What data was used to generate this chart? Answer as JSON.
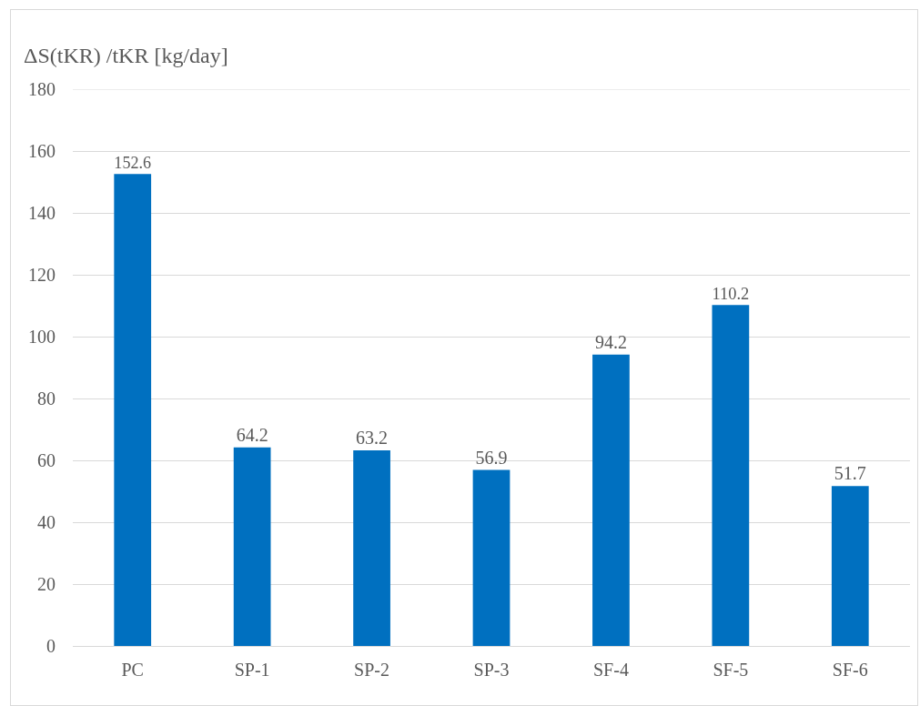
{
  "chart_data": {
    "type": "bar",
    "ylabel": "ΔS(tKR) /tKR [kg/day]",
    "categories": [
      "PC",
      "SP-1",
      "SP-2",
      "SP-3",
      "SF-4",
      "SF-5",
      "SF-6"
    ],
    "values": [
      152.6,
      64.2,
      63.2,
      56.9,
      94.2,
      110.2,
      51.7
    ],
    "color": "#0070c0",
    "ylim": [
      0,
      180
    ],
    "yticks": [
      0,
      20,
      40,
      60,
      80,
      100,
      120,
      140,
      160,
      180
    ],
    "grid": "y",
    "data_labels": true
  }
}
